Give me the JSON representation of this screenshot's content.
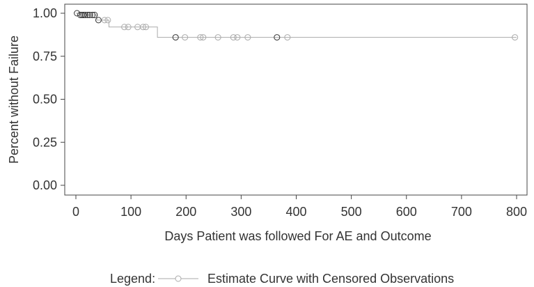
{
  "chart_data": {
    "type": "line",
    "xlabel": "Days Patient was followed For AE and Outcome",
    "ylabel": "Percent without Failure",
    "xlim": [
      0,
      800
    ],
    "ylim": [
      0,
      1.0
    ],
    "x_ticks": [
      "0",
      "100",
      "200",
      "300",
      "400",
      "500",
      "600",
      "700",
      "800"
    ],
    "y_ticks": [
      "0.00",
      "0.25",
      "0.50",
      "0.75",
      "1.00"
    ],
    "grid": false,
    "legend_position": "bottom",
    "colors": {
      "curve": "#aaaaaa",
      "censor_light": "#aaaaaa",
      "censor_dark": "#333333"
    },
    "series": [
      {
        "name": "Estimate Curve with Censored Observations",
        "step_x": [
          0,
          8,
          38,
          60,
          148,
          800
        ],
        "step_y": [
          1.0,
          0.99,
          0.96,
          0.92,
          0.86,
          0.86
        ],
        "censored": [
          {
            "x": 2,
            "y": 1.0,
            "dark": true
          },
          {
            "x": 8,
            "y": 0.99,
            "dark": true
          },
          {
            "x": 11,
            "y": 0.99,
            "dark": true
          },
          {
            "x": 14,
            "y": 0.99,
            "dark": true
          },
          {
            "x": 17,
            "y": 0.99,
            "dark": true
          },
          {
            "x": 21,
            "y": 0.99,
            "dark": true
          },
          {
            "x": 25,
            "y": 0.99,
            "dark": true
          },
          {
            "x": 30,
            "y": 0.99,
            "dark": true
          },
          {
            "x": 34,
            "y": 0.99,
            "dark": true
          },
          {
            "x": 41,
            "y": 0.96,
            "dark": true
          },
          {
            "x": 52,
            "y": 0.96,
            "dark": false
          },
          {
            "x": 58,
            "y": 0.96,
            "dark": false
          },
          {
            "x": 88,
            "y": 0.92,
            "dark": false
          },
          {
            "x": 95,
            "y": 0.92,
            "dark": false
          },
          {
            "x": 112,
            "y": 0.92,
            "dark": false
          },
          {
            "x": 122,
            "y": 0.92,
            "dark": false
          },
          {
            "x": 127,
            "y": 0.92,
            "dark": false
          },
          {
            "x": 181,
            "y": 0.86,
            "dark": true
          },
          {
            "x": 198,
            "y": 0.86,
            "dark": false
          },
          {
            "x": 226,
            "y": 0.86,
            "dark": false
          },
          {
            "x": 231,
            "y": 0.86,
            "dark": false
          },
          {
            "x": 258,
            "y": 0.86,
            "dark": false
          },
          {
            "x": 286,
            "y": 0.86,
            "dark": false
          },
          {
            "x": 293,
            "y": 0.86,
            "dark": false
          },
          {
            "x": 312,
            "y": 0.86,
            "dark": false
          },
          {
            "x": 365,
            "y": 0.86,
            "dark": true
          },
          {
            "x": 384,
            "y": 0.86,
            "dark": false
          },
          {
            "x": 797,
            "y": 0.86,
            "dark": false
          }
        ]
      }
    ],
    "legend": {
      "prefix": "Legend:"
    }
  }
}
